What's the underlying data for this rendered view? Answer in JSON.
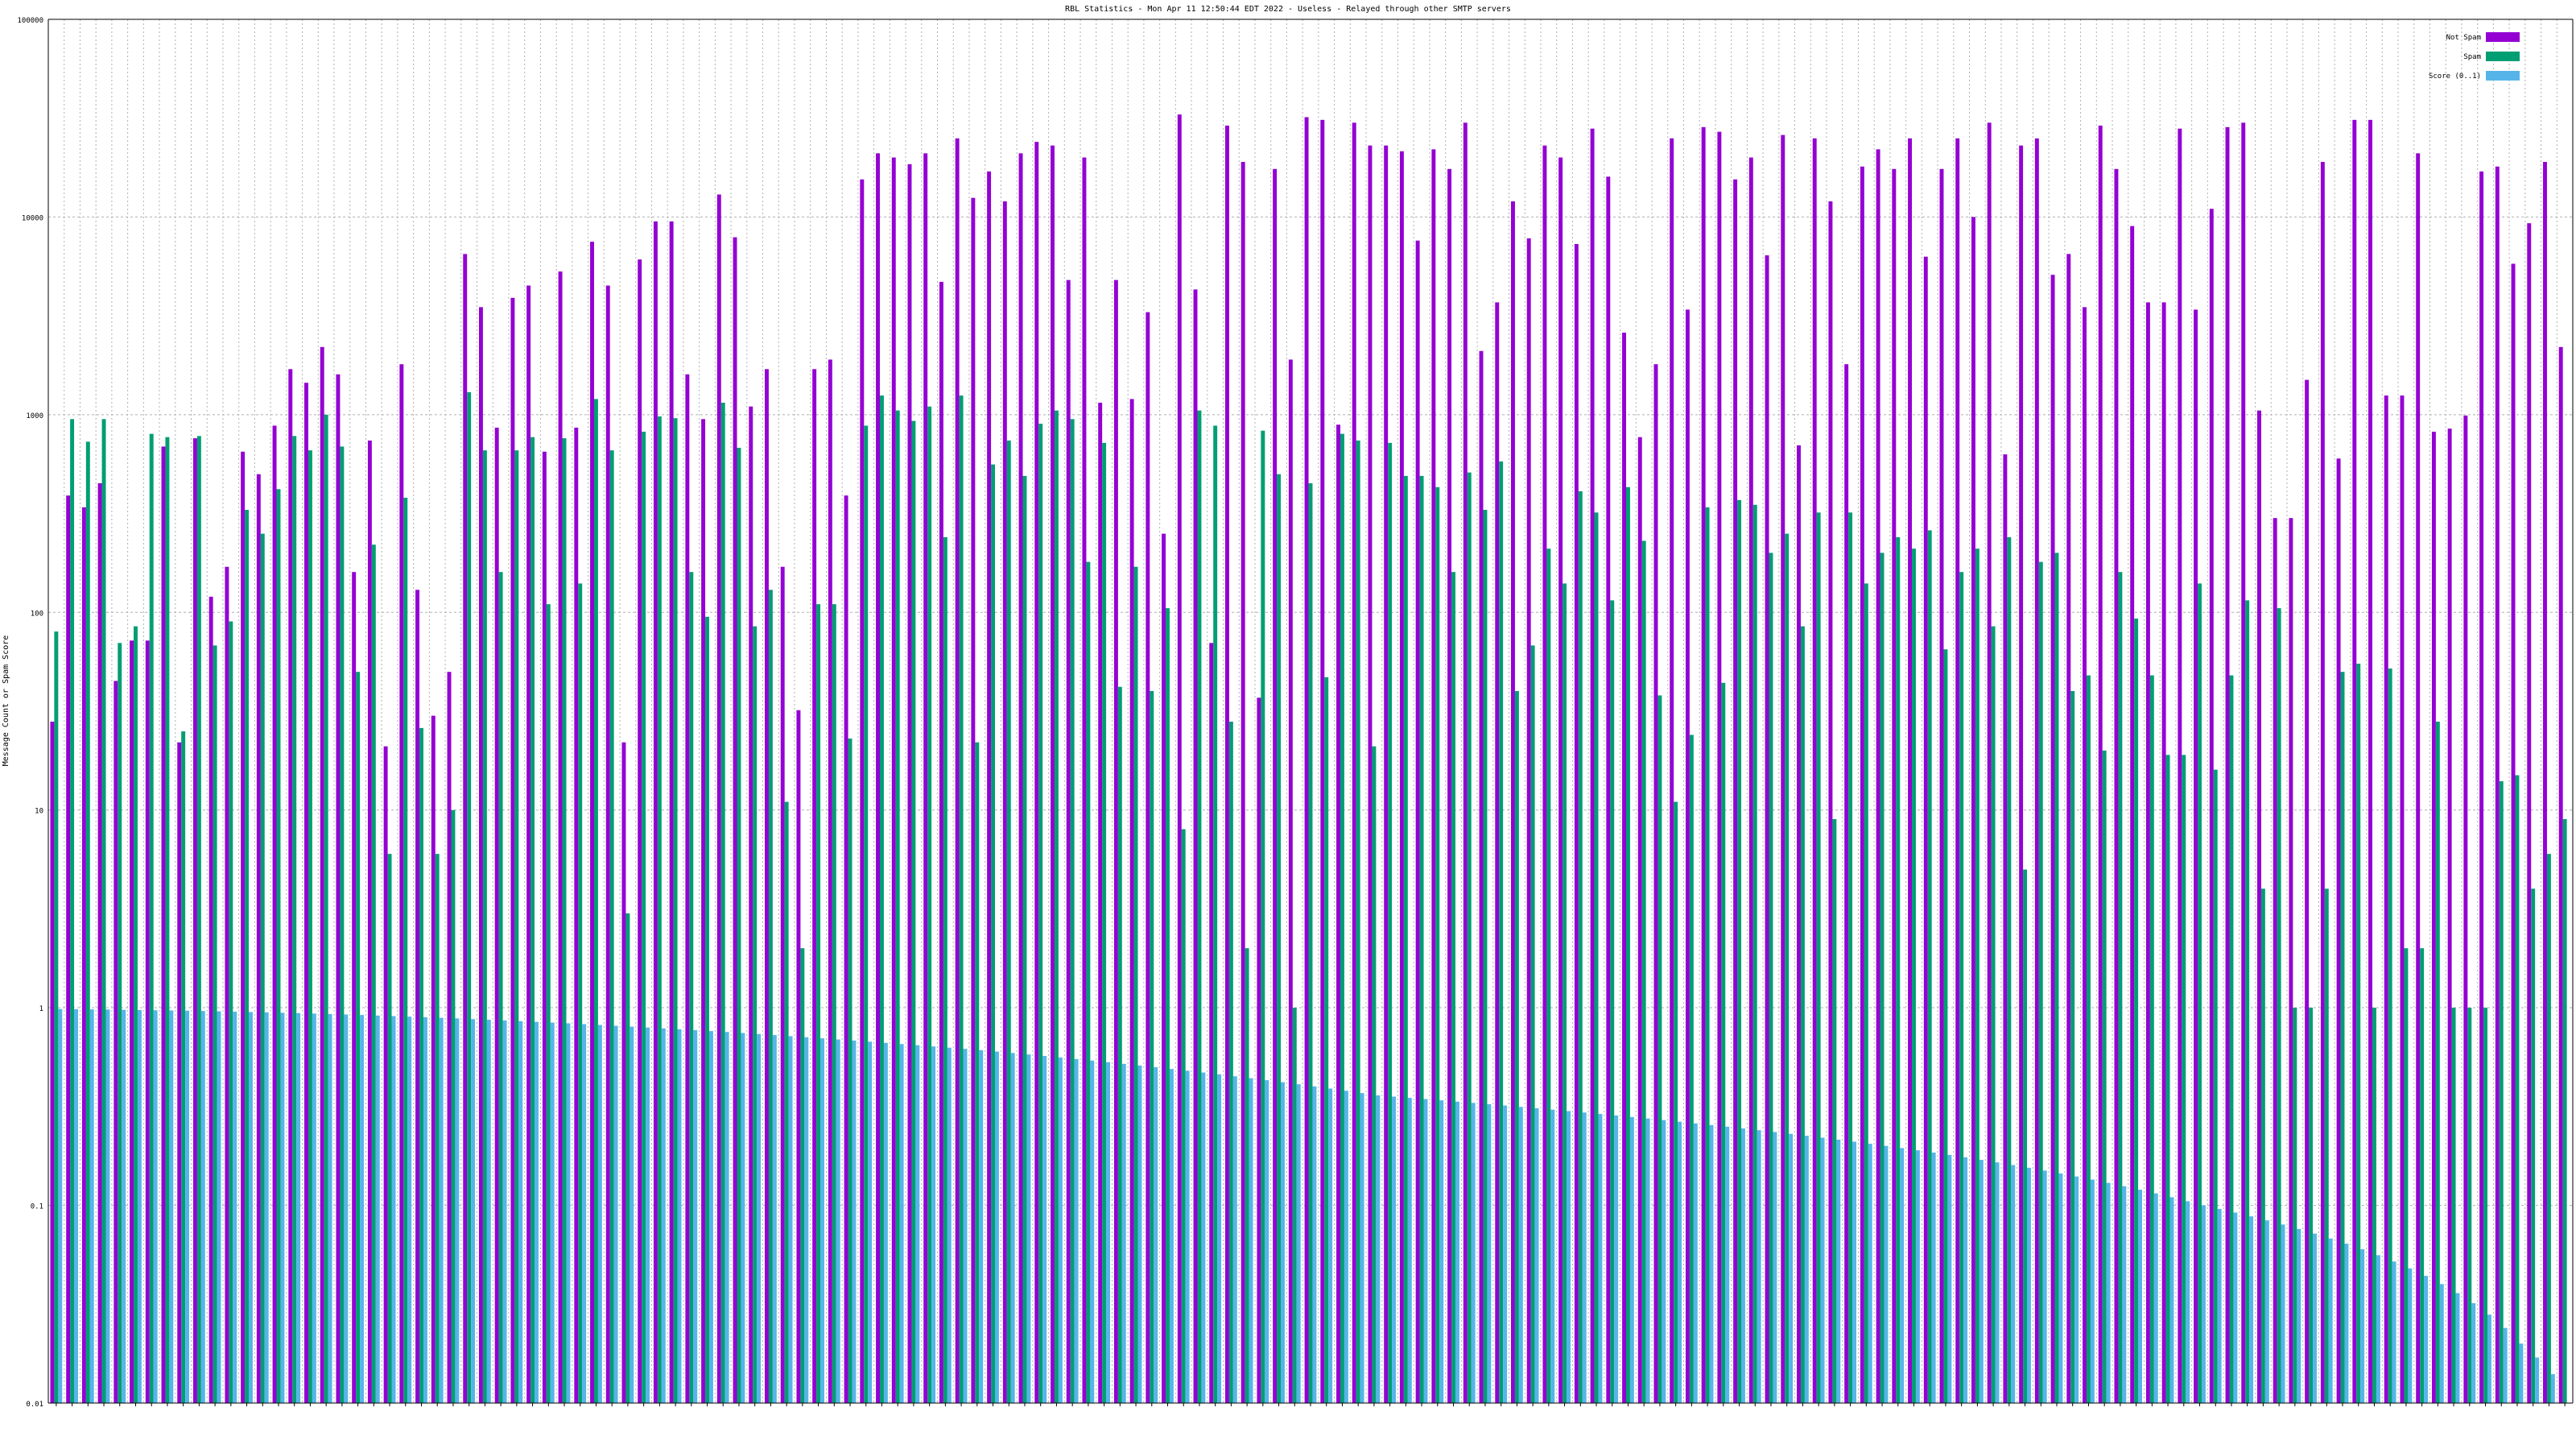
{
  "chart_data": {
    "type": "bar",
    "title": "RBL Statistics - Mon Apr 11 12:50:44 EDT 2022 - Useless - Relayed through other SMTP servers",
    "xlabel": "",
    "ylabel": "Message Count or Spam Score",
    "y_scale": "log",
    "ylim": [
      0.01,
      100000
    ],
    "y_ticks": [
      0.01,
      0.1,
      1,
      10,
      100,
      1000,
      10000,
      100000
    ],
    "y_tick_labels": [
      "0.01",
      "0.1",
      "1",
      "10",
      "100",
      "1000",
      "10000",
      "100000"
    ],
    "grid": true,
    "legend_position": "top-right",
    "x_tick_labels_legible": false,
    "series": [
      {
        "name": "Not Spam",
        "color": "#9400d3",
        "values": [
          28,
          390,
          340,
          450,
          45,
          72,
          72,
          690,
          22,
          760,
          120,
          170,
          650,
          500,
          880,
          1700,
          1450,
          2200,
          1600,
          160,
          740,
          21,
          1800,
          130,
          30,
          50,
          6500,
          3500,
          860,
          3900,
          4500,
          650,
          5300,
          860,
          7500,
          4500,
          22,
          6100,
          9500,
          9500,
          1600,
          950,
          13000,
          7900,
          1100,
          1700,
          170,
          32,
          1700,
          1900,
          390,
          15500,
          21000,
          20000,
          18500,
          21000,
          4700,
          25000,
          12500,
          17000,
          12000,
          21000,
          24000,
          23000,
          4800,
          20000,
          1150,
          4800,
          1200,
          3300,
          250,
          33000,
          4300,
          70,
          29000,
          19000,
          37,
          17500,
          1900,
          32000,
          31000,
          890,
          30000,
          23000,
          23000,
          21500,
          7600,
          22000,
          17500,
          30000,
          2100,
          3700,
          12000,
          7800,
          23000,
          20000,
          7300,
          28000,
          16000,
          2600,
          770,
          1800,
          25000,
          3400,
          28500,
          27000,
          15500,
          20000,
          6400,
          26000,
          700,
          25000,
          12000,
          1800,
          18000,
          22000,
          17500,
          25000,
          6300,
          17500,
          25000,
          10000,
          30000,
          630,
          23000,
          25000,
          5100,
          6500,
          3500,
          29000,
          17500,
          9000,
          3700,
          3700,
          28000,
          3400,
          11000,
          28500,
          30000,
          1050,
          300,
          300,
          1500,
          19000,
          600,
          31000,
          31000,
          1250,
          1250,
          21000,
          820,
          850,
          990,
          17000,
          18000,
          5800,
          9300,
          19000,
          2200
        ]
      },
      {
        "name": "Spam",
        "color": "#009e73",
        "values": [
          80,
          950,
          730,
          950,
          70,
          85,
          800,
          770,
          25,
          780,
          68,
          90,
          330,
          250,
          420,
          780,
          660,
          1000,
          690,
          50,
          220,
          6,
          380,
          26,
          6,
          10,
          1300,
          660,
          160,
          660,
          770,
          110,
          760,
          140,
          1200,
          660,
          3,
          820,
          980,
          960,
          160,
          95,
          1150,
          680,
          85,
          130,
          11,
          2,
          110,
          110,
          23,
          880,
          1250,
          1050,
          930,
          1100,
          240,
          1250,
          22,
          560,
          740,
          490,
          900,
          1050,
          950,
          180,
          720,
          42,
          170,
          40,
          105,
          8,
          1050,
          880,
          28,
          2,
          830,
          500,
          1,
          450,
          47,
          800,
          740,
          21,
          720,
          490,
          490,
          430,
          160,
          510,
          330,
          580,
          40,
          68,
          210,
          140,
          410,
          320,
          115,
          430,
          230,
          38,
          11,
          24,
          340,
          44,
          370,
          350,
          200,
          250,
          85,
          320,
          9,
          320,
          140,
          200,
          240,
          210,
          260,
          65,
          160,
          210,
          85,
          240,
          5,
          180,
          200,
          40,
          48,
          20,
          160,
          93,
          48,
          19,
          19,
          140,
          16,
          48,
          115,
          4,
          105,
          1,
          1,
          4,
          50,
          55,
          1,
          52,
          2,
          2,
          28,
          1,
          1,
          1,
          14,
          15,
          4,
          6,
          9,
          1
        ]
      },
      {
        "name": "Score (0..1)",
        "color": "#56b4e9",
        "values": [
          0.985,
          0.983,
          0.981,
          0.979,
          0.976,
          0.974,
          0.971,
          0.969,
          0.966,
          0.963,
          0.959,
          0.955,
          0.951,
          0.947,
          0.943,
          0.939,
          0.934,
          0.929,
          0.924,
          0.919,
          0.913,
          0.907,
          0.901,
          0.895,
          0.889,
          0.883,
          0.876,
          0.869,
          0.862,
          0.855,
          0.848,
          0.841,
          0.834,
          0.826,
          0.818,
          0.81,
          0.802,
          0.794,
          0.786,
          0.778,
          0.77,
          0.762,
          0.754,
          0.745,
          0.736,
          0.727,
          0.718,
          0.709,
          0.7,
          0.691,
          0.682,
          0.673,
          0.664,
          0.655,
          0.646,
          0.637,
          0.628,
          0.619,
          0.61,
          0.6,
          0.59,
          0.58,
          0.57,
          0.56,
          0.55,
          0.54,
          0.53,
          0.52,
          0.51,
          0.5,
          0.49,
          0.48,
          0.47,
          0.46,
          0.45,
          0.44,
          0.43,
          0.42,
          0.41,
          0.4,
          0.39,
          0.38,
          0.37,
          0.36,
          0.355,
          0.35,
          0.345,
          0.34,
          0.335,
          0.33,
          0.325,
          0.32,
          0.315,
          0.31,
          0.305,
          0.3,
          0.295,
          0.29,
          0.285,
          0.28,
          0.275,
          0.27,
          0.265,
          0.26,
          0.255,
          0.25,
          0.245,
          0.24,
          0.235,
          0.23,
          0.225,
          0.22,
          0.215,
          0.21,
          0.205,
          0.2,
          0.195,
          0.19,
          0.185,
          0.18,
          0.175,
          0.17,
          0.165,
          0.16,
          0.155,
          0.15,
          0.145,
          0.14,
          0.135,
          0.13,
          0.125,
          0.12,
          0.115,
          0.11,
          0.105,
          0.1,
          0.096,
          0.092,
          0.088,
          0.084,
          0.08,
          0.076,
          0.072,
          0.068,
          0.064,
          0.06,
          0.056,
          0.052,
          0.048,
          0.044,
          0.04,
          0.036,
          0.032,
          0.028,
          0.024,
          0.02,
          0.017,
          0.014
        ]
      }
    ]
  }
}
